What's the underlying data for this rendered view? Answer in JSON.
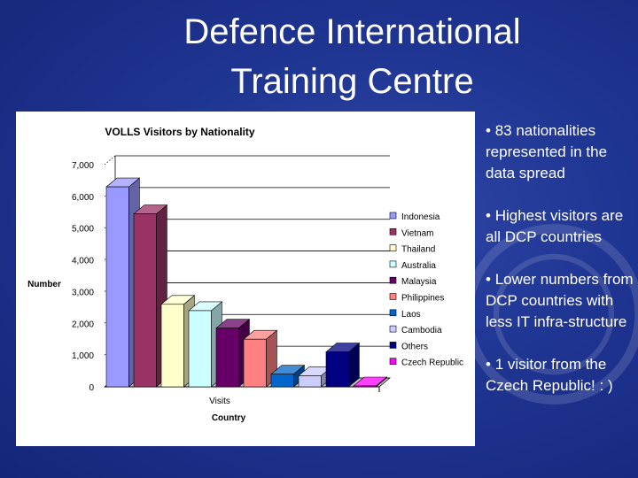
{
  "slide": {
    "title_line1": "Defence International",
    "title_line2": "Training Centre",
    "bullets": [
      "83 nationalities represented in the data spread",
      "Highest visitors are all DCP countries",
      "Lower numbers from DCP countries with less IT infra-structure",
      "1 visitor from the Czech Republic! : )"
    ]
  },
  "chart_data": {
    "type": "bar",
    "title": "VOLLS Visitors by Nationality",
    "xlabel": "Country",
    "ylabel": "Number",
    "categories": [
      "Visits"
    ],
    "ylim": [
      0,
      7000
    ],
    "yticks": [
      "0",
      "1,000",
      "2,000",
      "3,000",
      "4,000",
      "5,000",
      "6,000",
      "7,000"
    ],
    "grid": true,
    "legend": "right",
    "series": [
      {
        "name": "Indonesia",
        "value": 6300,
        "color": "#9999ff"
      },
      {
        "name": "Vietnam",
        "value": 5450,
        "color": "#993366"
      },
      {
        "name": "Thailand",
        "value": 2600,
        "color": "#ffffcc"
      },
      {
        "name": "Australia",
        "value": 2400,
        "color": "#ccffff"
      },
      {
        "name": "Malaysia",
        "value": 1850,
        "color": "#660066"
      },
      {
        "name": "Philippines",
        "value": 1500,
        "color": "#ff8080"
      },
      {
        "name": "Laos",
        "value": 400,
        "color": "#0066cc"
      },
      {
        "name": "Cambodia",
        "value": 350,
        "color": "#ccccff"
      },
      {
        "name": "Others",
        "value": 1100,
        "color": "#000080"
      },
      {
        "name": "Czech Republic",
        "value": 1,
        "color": "#ff00ff"
      }
    ]
  }
}
